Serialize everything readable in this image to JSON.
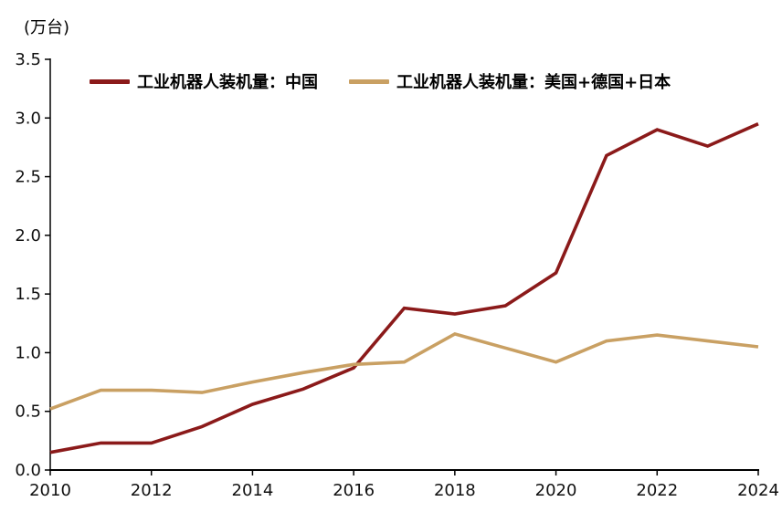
{
  "chart_data": {
    "type": "line",
    "title": "",
    "ylabel": "(万台)",
    "xlabel": "",
    "x": [
      2010,
      2011,
      2012,
      2013,
      2014,
      2015,
      2016,
      2017,
      2018,
      2019,
      2020,
      2021,
      2022,
      2023,
      2024
    ],
    "x_tick_step": 2,
    "ylim": [
      0,
      3.5
    ],
    "y_tick_step": 0.5,
    "grid": false,
    "legend_position": "top",
    "axis_color": "#000000",
    "series": [
      {
        "name": "工业机器人装机量：中国",
        "color": "#8B1A1A",
        "values": [
          0.15,
          0.23,
          0.23,
          0.37,
          0.56,
          0.69,
          0.87,
          1.38,
          1.33,
          1.4,
          1.68,
          2.68,
          2.9,
          2.76,
          2.95
        ]
      },
      {
        "name": "工业机器人装机量：美国+德国+日本",
        "color": "#C9A063",
        "values": [
          0.52,
          0.68,
          0.68,
          0.66,
          0.75,
          0.83,
          0.9,
          0.92,
          1.16,
          1.04,
          0.92,
          1.1,
          1.15,
          1.1,
          1.05
        ]
      }
    ]
  }
}
